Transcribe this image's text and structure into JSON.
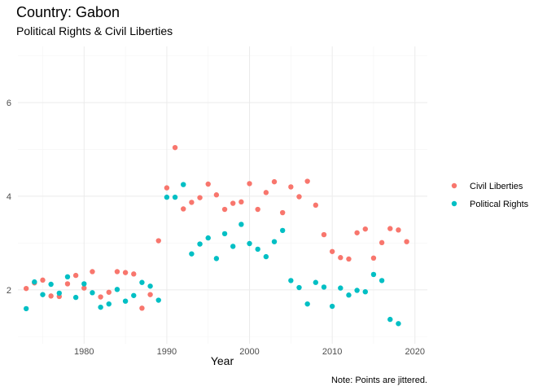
{
  "chart_data": {
    "type": "scatter",
    "title": "Country: Gabon",
    "subtitle": "Political Rights & Civil Liberties",
    "xlabel": "Year",
    "ylabel": "",
    "caption": "Note: Points are jittered.",
    "xlim": [
      1972,
      2021.5
    ],
    "ylim": [
      0.85,
      7.2
    ],
    "xticks": [
      1980,
      1990,
      2000,
      2010,
      2020
    ],
    "yticks": [
      2,
      4,
      6
    ],
    "grid": true,
    "legend_position": "right",
    "series": [
      {
        "name": "Civil Liberties",
        "color": "#F8766D",
        "points": [
          [
            1973,
            2.03
          ],
          [
            1974,
            2.15
          ],
          [
            1975,
            2.21
          ],
          [
            1976,
            1.87
          ],
          [
            1977,
            1.86
          ],
          [
            1978,
            2.13
          ],
          [
            1979,
            2.31
          ],
          [
            1980,
            2.04
          ],
          [
            1981,
            2.39
          ],
          [
            1982,
            1.85
          ],
          [
            1983,
            1.95
          ],
          [
            1984,
            2.39
          ],
          [
            1985,
            2.37
          ],
          [
            1986,
            2.34
          ],
          [
            1987,
            1.61
          ],
          [
            1988,
            1.9
          ],
          [
            1989,
            3.05
          ],
          [
            1990,
            4.18
          ],
          [
            1991,
            5.04
          ],
          [
            1992,
            3.73
          ],
          [
            1993,
            3.87
          ],
          [
            1994,
            3.97
          ],
          [
            1995,
            4.26
          ],
          [
            1996,
            4.03
          ],
          [
            1997,
            3.72
          ],
          [
            1998,
            3.85
          ],
          [
            1999,
            3.88
          ],
          [
            2000,
            4.27
          ],
          [
            2001,
            3.72
          ],
          [
            2002,
            4.08
          ],
          [
            2003,
            4.31
          ],
          [
            2004,
            3.65
          ],
          [
            2005,
            4.2
          ],
          [
            2006,
            3.99
          ],
          [
            2007,
            4.32
          ],
          [
            2008,
            3.81
          ],
          [
            2009,
            3.18
          ],
          [
            2010,
            2.82
          ],
          [
            2011,
            2.69
          ],
          [
            2012,
            2.66
          ],
          [
            2013,
            3.22
          ],
          [
            2014,
            3.3
          ],
          [
            2015,
            2.68
          ],
          [
            2016,
            3.01
          ],
          [
            2017,
            3.31
          ],
          [
            2018,
            3.28
          ],
          [
            2019,
            3.03
          ]
        ]
      },
      {
        "name": "Political Rights",
        "color": "#00BFC4",
        "points": [
          [
            1973,
            1.6
          ],
          [
            1974,
            2.17
          ],
          [
            1975,
            1.9
          ],
          [
            1976,
            2.12
          ],
          [
            1977,
            1.93
          ],
          [
            1978,
            2.28
          ],
          [
            1979,
            1.84
          ],
          [
            1980,
            2.13
          ],
          [
            1981,
            1.94
          ],
          [
            1982,
            1.63
          ],
          [
            1983,
            1.7
          ],
          [
            1984,
            2.01
          ],
          [
            1985,
            1.76
          ],
          [
            1986,
            1.88
          ],
          [
            1987,
            2.16
          ],
          [
            1988,
            2.08
          ],
          [
            1989,
            1.78
          ],
          [
            1990,
            3.98
          ],
          [
            1991,
            3.98
          ],
          [
            1992,
            4.25
          ],
          [
            1993,
            2.77
          ],
          [
            1994,
            2.98
          ],
          [
            1995,
            3.11
          ],
          [
            1996,
            2.67
          ],
          [
            1997,
            3.2
          ],
          [
            1998,
            2.93
          ],
          [
            1999,
            3.4
          ],
          [
            2000,
            2.99
          ],
          [
            2001,
            2.87
          ],
          [
            2002,
            2.71
          ],
          [
            2003,
            3.03
          ],
          [
            2004,
            3.27
          ],
          [
            2005,
            2.2
          ],
          [
            2006,
            2.05
          ],
          [
            2007,
            1.7
          ],
          [
            2008,
            2.16
          ],
          [
            2009,
            2.06
          ],
          [
            2010,
            1.65
          ],
          [
            2011,
            2.04
          ],
          [
            2012,
            1.89
          ],
          [
            2013,
            1.99
          ],
          [
            2014,
            1.96
          ],
          [
            2015,
            2.33
          ],
          [
            2016,
            2.2
          ],
          [
            2017,
            1.37
          ],
          [
            2018,
            1.28
          ]
        ]
      }
    ]
  }
}
